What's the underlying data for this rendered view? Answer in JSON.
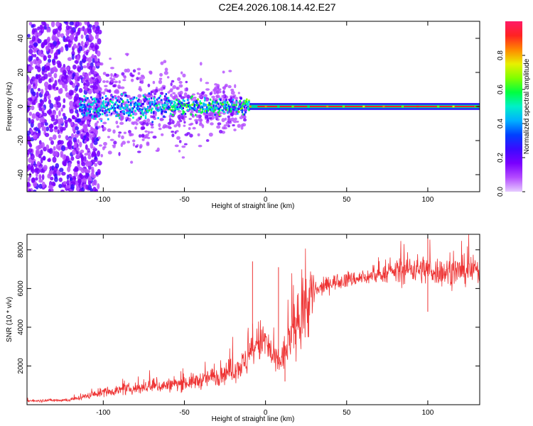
{
  "figure_title": "C2E4.2026.108.14.42.E27",
  "colors": {
    "snr_line": "#ee3333",
    "frame": "#000000",
    "colormap": [
      "#e6ccff",
      "#b44cff",
      "#7a00ff",
      "#3b0aff",
      "#0040ff",
      "#00b0ff",
      "#00f0c8",
      "#00ff40",
      "#80ff00",
      "#e8f000",
      "#ff8800",
      "#ff2222",
      "#ff1a66"
    ]
  },
  "chart_data": [
    {
      "type": "heatmap",
      "name": "spectrogram",
      "xlabel": "Height of straight line (km)",
      "ylabel": "Frequency (Hz)",
      "xlim": [
        -147,
        132
      ],
      "ylim": [
        -50,
        50
      ],
      "xticks": [
        -100,
        -50,
        0,
        50,
        100
      ],
      "xtick_labels": [
        "-100",
        "-50",
        "0",
        "50",
        "100"
      ],
      "yticks": [
        -40,
        -20,
        0,
        20,
        40
      ],
      "ytick_labels": [
        "-40",
        "-20",
        "0",
        "20",
        "40"
      ],
      "colorbar": {
        "label": "Normalized spectral amplitude",
        "range": [
          0,
          1
        ],
        "ticks": [
          0,
          0.2,
          0.4,
          0.6,
          0.8
        ],
        "tick_labels": [
          "0.0",
          "0.2",
          "0.4",
          "0.6",
          "0.8"
        ]
      },
      "description_of_features": {
        "noise_region_end_km": -110,
        "band_center_hz": 0,
        "narrow_band_start_km": -10
      }
    },
    {
      "type": "line",
      "name": "snr",
      "xlabel": "Height of straight line (km)",
      "ylabel": "SNR (10 * v/v)",
      "xlim": [
        -147,
        132
      ],
      "ylim": [
        0,
        8800
      ],
      "xticks": [
        -100,
        -50,
        0,
        50,
        100
      ],
      "xtick_labels": [
        "-100",
        "-50",
        "0",
        "50",
        "100"
      ],
      "yticks": [
        2000,
        4000,
        6000,
        8000
      ],
      "ytick_labels": [
        "2000",
        "4000",
        "6000",
        "8000"
      ],
      "series": [
        {
          "name": "SNR",
          "trend_x": [
            -147,
            -120,
            -100,
            -80,
            -60,
            -40,
            -30,
            -20,
            -12,
            -5,
            0,
            4,
            8,
            12,
            16,
            20,
            25,
            30,
            40,
            50,
            60,
            70,
            80,
            90,
            100,
            110,
            120,
            132
          ],
          "trend_y": [
            200,
            250,
            650,
            850,
            1000,
            1250,
            1500,
            1800,
            2200,
            3200,
            3300,
            2500,
            2100,
            2700,
            3600,
            4300,
            5100,
            5800,
            6300,
            6450,
            6550,
            6700,
            6900,
            7050,
            6950,
            6850,
            6900,
            6950
          ],
          "spikes": [
            {
              "x": -8,
              "y": 7400
            },
            {
              "x": 8,
              "y": 7100
            },
            {
              "x": 12,
              "y": 1200
            },
            {
              "x": 100,
              "y": 8700
            },
            {
              "x": 100,
              "y": 4800
            }
          ]
        }
      ]
    }
  ]
}
